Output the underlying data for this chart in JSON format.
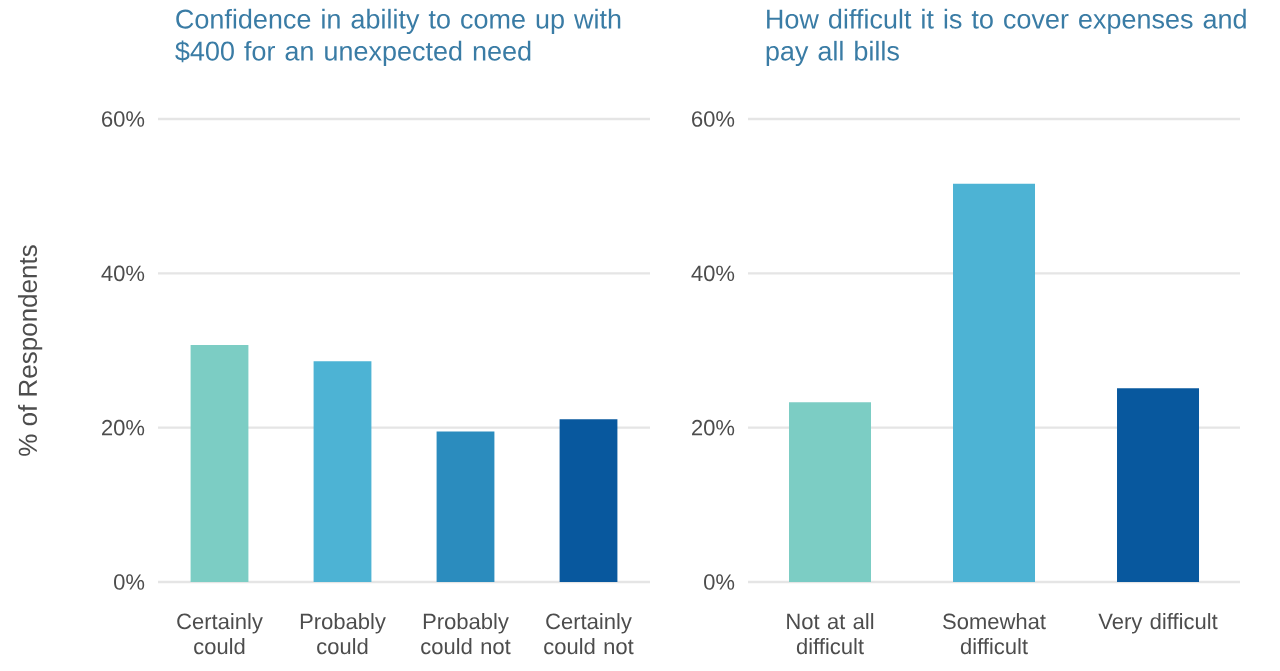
{
  "chart_data": [
    {
      "type": "bar",
      "title": "Confidence in ability to come up with $400 for an unexpected need",
      "ylabel": "% of Respondents",
      "categories": [
        "Certainly could",
        "Probably could",
        "Probably could not",
        "Certainly could not"
      ],
      "values": [
        30.7,
        28.6,
        19.5,
        21.1
      ],
      "colors": [
        "#7ccdc4",
        "#4db3d4",
        "#2b8cbe",
        "#08589e"
      ],
      "ylim": [
        0,
        60
      ],
      "yticks": [
        {
          "value": 0,
          "label": "0%"
        },
        {
          "value": 20,
          "label": "20%"
        },
        {
          "value": 40,
          "label": "40%"
        },
        {
          "value": 60,
          "label": "60%"
        }
      ],
      "grid": "y"
    },
    {
      "type": "bar",
      "title": "How difficult it is to cover expenses and pay all bills",
      "categories": [
        "Not at all difficult",
        "Somewhat difficult",
        "Very difficult"
      ],
      "values": [
        23.3,
        51.6,
        25.1
      ],
      "colors": [
        "#7ccdc4",
        "#4db3d4",
        "#08589e"
      ],
      "ylim": [
        0,
        60
      ],
      "yticks": [
        {
          "value": 0,
          "label": "0%"
        },
        {
          "value": 20,
          "label": "20%"
        },
        {
          "value": 40,
          "label": "40%"
        },
        {
          "value": 60,
          "label": "60%"
        }
      ],
      "grid": "y"
    }
  ]
}
